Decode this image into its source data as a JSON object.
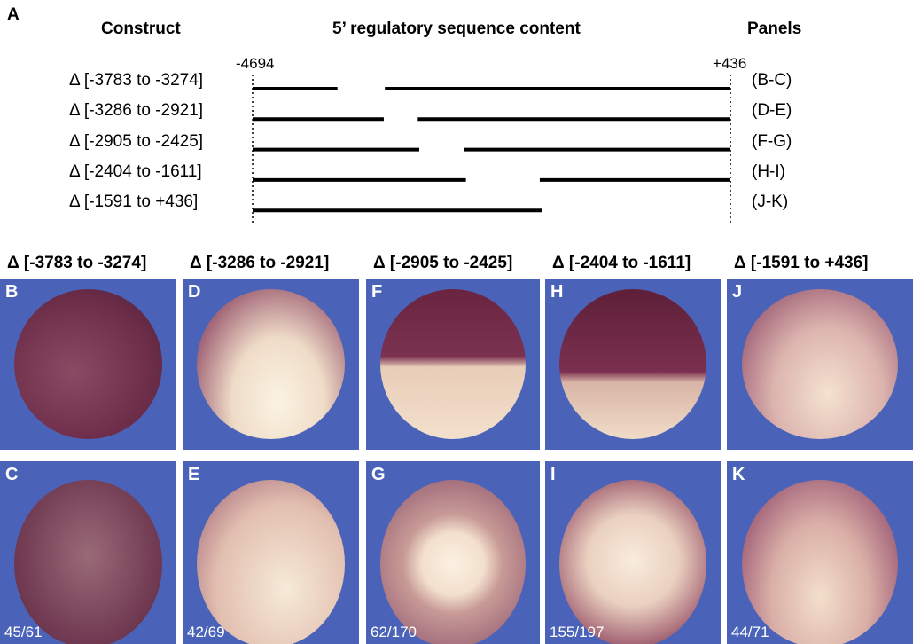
{
  "panel_label_a": "A",
  "headers": {
    "construct": "Construct",
    "content": "5’ regulatory sequence content",
    "panels": "Panels"
  },
  "axis": {
    "start": -4694,
    "end": 436,
    "start_label": "-4694",
    "end_label": "+436"
  },
  "constructs": [
    {
      "label": "Δ [-3783 to -3274]",
      "del_from": -3783,
      "del_to": -3274,
      "panels": "(B-C)"
    },
    {
      "label": "Δ [-3286 to -2921]",
      "del_from": -3286,
      "del_to": -2921,
      "panels": "(D-E)"
    },
    {
      "label": "Δ [-2905 to -2425]",
      "del_from": -2905,
      "del_to": -2425,
      "panels": "(F-G)"
    },
    {
      "label": "Δ [-2404 to -1611]",
      "del_from": -2404,
      "del_to": -1611,
      "panels": "(H-I)"
    },
    {
      "label": "Δ [-1591 to +436]",
      "del_from": -1591,
      "del_to": 436,
      "panels": "(J-K)"
    }
  ],
  "columns": [
    {
      "title": "Δ [-3783 to -3274]",
      "top": "B",
      "bottom": "C",
      "count": "45/61"
    },
    {
      "title": "Δ [-3286 to -2921]",
      "top": "D",
      "bottom": "E",
      "count": "42/69"
    },
    {
      "title": "Δ [-2905 to -2425]",
      "top": "F",
      "bottom": "G",
      "count": "62/170"
    },
    {
      "title": "Δ [-2404 to -1611]",
      "top": "H",
      "bottom": "I",
      "count": "155/197"
    },
    {
      "title": "Δ [-1591 to +436]",
      "top": "J",
      "bottom": "K",
      "count": "44/71"
    }
  ],
  "colors": {
    "background_blue": "#4a63b8",
    "stain": "#6e2a45",
    "embryo_light": "#f3e6d6"
  }
}
